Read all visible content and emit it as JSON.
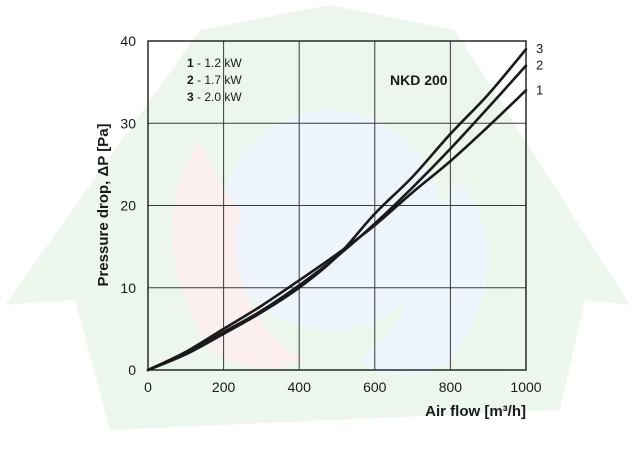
{
  "chart_data": {
    "type": "line",
    "title": "NKD 200",
    "xlabel": "Air flow [m³/h]",
    "ylabel": "Pressure drop, ΔP [Pa]",
    "xlim": [
      0,
      1000
    ],
    "ylim": [
      0,
      40
    ],
    "x_ticks": [
      "0",
      "200",
      "400",
      "600",
      "800",
      "1000"
    ],
    "y_ticks": [
      "0",
      "10",
      "20",
      "30",
      "40"
    ],
    "grid": true,
    "legend_position": "top-left",
    "legend": [
      {
        "num": "1",
        "text": " - 1.2 kW"
      },
      {
        "num": "2",
        "text": " - 1.7 kW"
      },
      {
        "num": "3",
        "text": " - 2.0 kW"
      }
    ],
    "series": [
      {
        "name": "1",
        "x": [
          0,
          100,
          200,
          300,
          400,
          500,
          600,
          700,
          800,
          900,
          1000
        ],
        "y": [
          0,
          2.2,
          5.0,
          7.8,
          10.9,
          14.1,
          17.6,
          21.6,
          25.4,
          29.6,
          34.0
        ]
      },
      {
        "name": "2",
        "x": [
          0,
          100,
          200,
          300,
          400,
          500,
          600,
          700,
          800,
          900,
          1000
        ],
        "y": [
          0,
          2.0,
          4.6,
          7.2,
          10.3,
          13.8,
          17.8,
          22.2,
          26.9,
          31.9,
          37.0
        ]
      },
      {
        "name": "3",
        "x": [
          0,
          100,
          200,
          300,
          400,
          500,
          600,
          700,
          800,
          900,
          1000
        ],
        "y": [
          0,
          1.9,
          4.4,
          7.0,
          10.0,
          13.8,
          19.0,
          23.5,
          28.7,
          33.5,
          39.0
        ]
      }
    ],
    "colors": {
      "line": "#1a1a1a",
      "grid": "#3a3a3a",
      "watermark_green": "#cfe8cf",
      "watermark_blue": "#cfe0f0",
      "watermark_red": "#f6d2d2"
    }
  }
}
